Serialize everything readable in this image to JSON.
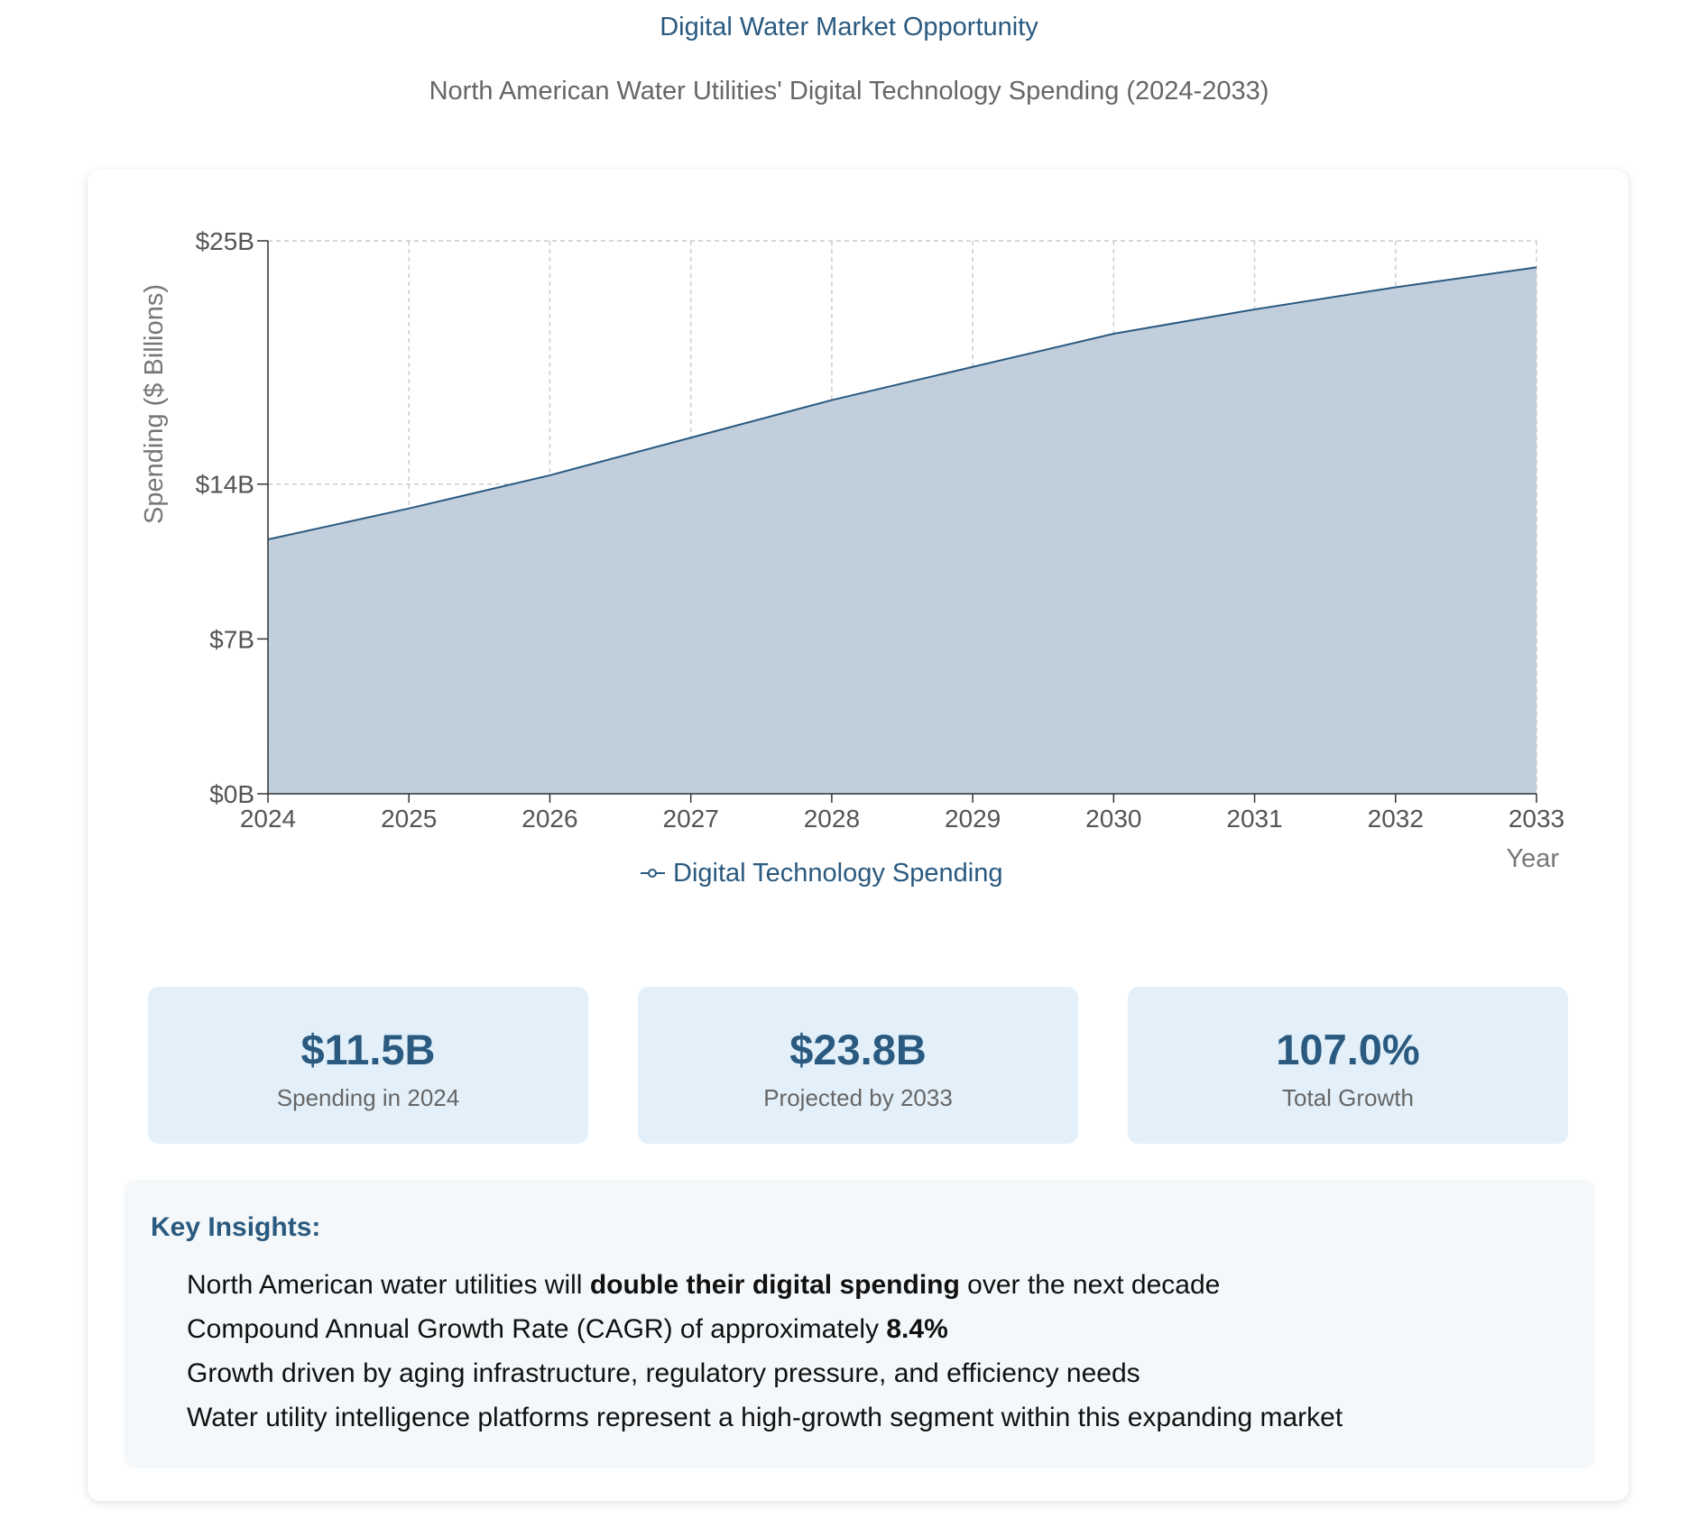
{
  "header": {
    "title": "Digital Water Market Opportunity",
    "subtitle": "North American Water Utilities' Digital Technology Spending (2024-2033)"
  },
  "colors": {
    "accent": "#2a5a80",
    "area_fill": "#c1cedc",
    "line": "#2a5a80",
    "grid": "#cccccc",
    "stat_bg": "#e3f0fa",
    "insights_bg": "#f4f8fa"
  },
  "chart_data": {
    "type": "area",
    "title": "North American Water Utilities' Digital Technology Spending (2024-2033)",
    "xlabel": "Year",
    "ylabel": "Spending ($ Billions)",
    "x": [
      2024,
      2025,
      2026,
      2027,
      2028,
      2029,
      2030,
      2031,
      2032,
      2033
    ],
    "series": [
      {
        "name": "Digital Technology Spending",
        "values": [
          11.5,
          12.9,
          14.4,
          16.1,
          17.8,
          19.3,
          20.8,
          21.9,
          22.9,
          23.8
        ]
      }
    ],
    "ylim": [
      0,
      25
    ],
    "xlim": [
      2024,
      2033
    ],
    "y_ticks": [
      0,
      7,
      14,
      25
    ],
    "y_tick_labels": [
      "$0B",
      "$7B",
      "$14B",
      "$25B"
    ],
    "x_tick_labels": [
      "2024",
      "2025",
      "2026",
      "2027",
      "2028",
      "2029",
      "2030",
      "2031",
      "2032",
      "2033"
    ],
    "grid": true,
    "legend": {
      "label": "Digital Technology Spending",
      "position": "bottom-center"
    }
  },
  "stats": [
    {
      "value": "$11.5B",
      "label": "Spending in 2024"
    },
    {
      "value": "$23.8B",
      "label": "Projected by 2033"
    },
    {
      "value": "107.0%",
      "label": "Total Growth"
    }
  ],
  "insights": {
    "title": "Key Insights:",
    "items": [
      {
        "before": "North American water utilities will ",
        "bold": "double their digital spending",
        "after": " over the next decade"
      },
      {
        "before": "Compound Annual Growth Rate (CAGR) of approximately ",
        "bold": "8.4%",
        "after": ""
      },
      {
        "before": "Growth driven by aging infrastructure, regulatory pressure, and efficiency needs",
        "bold": "",
        "after": ""
      },
      {
        "before": "Water utility intelligence platforms represent a high-growth segment within this expanding market",
        "bold": "",
        "after": ""
      }
    ]
  }
}
